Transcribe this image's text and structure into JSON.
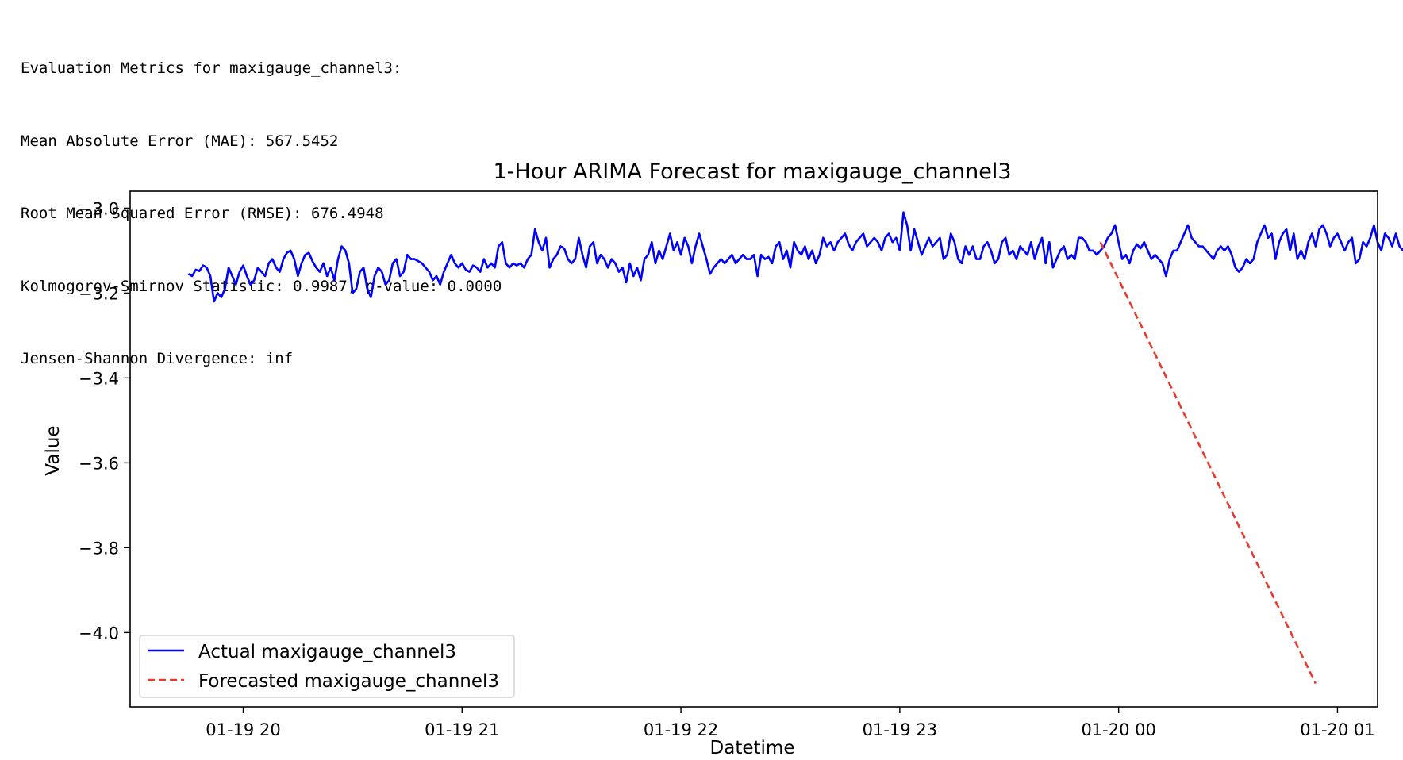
{
  "output_text": {
    "lines": [
      "Evaluation Metrics for maxigauge_channel3:",
      "Mean Absolute Error (MAE): 567.5452",
      "Root Mean Squared Error (RMSE): 676.4948",
      "Kolmogorov-Smirnov Statistic: 0.9987, p-value: 0.0000",
      "Jensen-Shannon Divergence: inf"
    ]
  },
  "chart_data": {
    "type": "line",
    "title": "1-Hour ARIMA Forecast for maxigauge_channel3",
    "xlabel": "Datetime",
    "ylabel": "Value",
    "xlim": [
      "01-19 19:29",
      "01-20 01:11"
    ],
    "ylim": [
      -4.175,
      -2.96
    ],
    "xticks": [
      "01-19 20",
      "01-19 21",
      "01-19 22",
      "01-19 23",
      "01-20 00",
      "01-20 01"
    ],
    "yticks": [
      -3.0,
      -3.2,
      -3.4,
      -3.6,
      -3.8,
      -4.0
    ],
    "ytick_labels": [
      "−3.0",
      "−3.2",
      "−3.4",
      "−3.6",
      "−3.8",
      "−4.0"
    ],
    "grid": false,
    "legend_position": "lower-left",
    "x_start": "01-19 19:45",
    "x_step_minutes": 1,
    "series": [
      {
        "name": "Actual maxigauge_channel3",
        "color": "#0000ff",
        "style": "solid",
        "values": [
          -3.155,
          -3.16,
          -3.145,
          -3.148,
          -3.135,
          -3.14,
          -3.16,
          -3.22,
          -3.2,
          -3.21,
          -3.19,
          -3.14,
          -3.16,
          -3.18,
          -3.15,
          -3.135,
          -3.16,
          -3.18,
          -3.17,
          -3.14,
          -3.15,
          -3.16,
          -3.13,
          -3.12,
          -3.14,
          -3.15,
          -3.12,
          -3.105,
          -3.1,
          -3.12,
          -3.16,
          -3.13,
          -3.11,
          -3.105,
          -3.125,
          -3.14,
          -3.15,
          -3.13,
          -3.16,
          -3.14,
          -3.17,
          -3.12,
          -3.09,
          -3.1,
          -3.13,
          -3.2,
          -3.19,
          -3.15,
          -3.14,
          -3.19,
          -3.21,
          -3.16,
          -3.14,
          -3.15,
          -3.18,
          -3.17,
          -3.13,
          -3.12,
          -3.16,
          -3.15,
          -3.11,
          -3.12,
          -3.12,
          -3.125,
          -3.13,
          -3.14,
          -3.15,
          -3.17,
          -3.16,
          -3.18,
          -3.15,
          -3.13,
          -3.11,
          -3.13,
          -3.14,
          -3.13,
          -3.145,
          -3.15,
          -3.135,
          -3.14,
          -3.15,
          -3.12,
          -3.14,
          -3.13,
          -3.14,
          -3.09,
          -3.08,
          -3.13,
          -3.14,
          -3.13,
          -3.135,
          -3.13,
          -3.14,
          -3.12,
          -3.11,
          -3.05,
          -3.08,
          -3.1,
          -3.07,
          -3.14,
          -3.12,
          -3.11,
          -3.09,
          -3.095,
          -3.12,
          -3.13,
          -3.12,
          -3.07,
          -3.11,
          -3.14,
          -3.09,
          -3.08,
          -3.13,
          -3.11,
          -3.12,
          -3.14,
          -3.12,
          -3.13,
          -3.15,
          -3.14,
          -3.175,
          -3.13,
          -3.16,
          -3.14,
          -3.17,
          -3.12,
          -3.11,
          -3.08,
          -3.13,
          -3.1,
          -3.12,
          -3.09,
          -3.06,
          -3.1,
          -3.08,
          -3.11,
          -3.07,
          -3.09,
          -3.13,
          -3.09,
          -3.06,
          -3.09,
          -3.12,
          -3.155,
          -3.14,
          -3.13,
          -3.12,
          -3.13,
          -3.12,
          -3.11,
          -3.13,
          -3.12,
          -3.11,
          -3.12,
          -3.12,
          -3.11,
          -3.16,
          -3.11,
          -3.12,
          -3.115,
          -3.13,
          -3.09,
          -3.08,
          -3.12,
          -3.1,
          -3.14,
          -3.08,
          -3.1,
          -3.11,
          -3.09,
          -3.12,
          -3.1,
          -3.13,
          -3.11,
          -3.07,
          -3.09,
          -3.08,
          -3.1,
          -3.08,
          -3.07,
          -3.06,
          -3.085,
          -3.1,
          -3.08,
          -3.07,
          -3.06,
          -3.09,
          -3.08,
          -3.07,
          -3.08,
          -3.1,
          -3.07,
          -3.06,
          -3.08,
          -3.07,
          -3.1,
          -3.01,
          -3.04,
          -3.1,
          -3.05,
          -3.08,
          -3.11,
          -3.09,
          -3.07,
          -3.09,
          -3.08,
          -3.07,
          -3.12,
          -3.11,
          -3.06,
          -3.08,
          -3.12,
          -3.13,
          -3.09,
          -3.11,
          -3.09,
          -3.12,
          -3.12,
          -3.09,
          -3.08,
          -3.1,
          -3.13,
          -3.12,
          -3.08,
          -3.07,
          -3.11,
          -3.1,
          -3.12,
          -3.09,
          -3.1,
          -3.11,
          -3.08,
          -3.12,
          -3.09,
          -3.07,
          -3.13,
          -3.08,
          -3.14,
          -3.12,
          -3.1,
          -3.09,
          -3.12,
          -3.11,
          -3.12,
          -3.07,
          -3.07,
          -3.08,
          -3.1,
          -3.1,
          -3.11,
          -3.1,
          -3.09,
          -3.07,
          -3.06,
          -3.04,
          -3.08,
          -3.12,
          -3.11,
          -3.13,
          -3.1,
          -3.085,
          -3.095,
          -3.08,
          -3.1,
          -3.12,
          -3.11,
          -3.12,
          -3.13,
          -3.16,
          -3.12,
          -3.1,
          -3.1,
          -3.08,
          -3.06,
          -3.04,
          -3.07,
          -3.08,
          -3.09,
          -3.09,
          -3.1,
          -3.11,
          -3.12,
          -3.1,
          -3.09,
          -3.1,
          -3.09,
          -3.11,
          -3.14,
          -3.15,
          -3.14,
          -3.12,
          -3.13,
          -3.12,
          -3.08,
          -3.06,
          -3.04,
          -3.07,
          -3.06,
          -3.12,
          -3.08,
          -3.06,
          -3.05,
          -3.1,
          -3.06,
          -3.12,
          -3.1,
          -3.12,
          -3.08,
          -3.06,
          -3.09,
          -3.05,
          -3.04,
          -3.06,
          -3.09,
          -3.07,
          -3.06,
          -3.08,
          -3.1,
          -3.08,
          -3.07,
          -3.13,
          -3.12,
          -3.08,
          -3.09,
          -3.07,
          -3.04,
          -3.08,
          -3.1,
          -3.06,
          -3.07,
          -3.09,
          -3.06,
          -3.09,
          -3.1,
          -3.07,
          -3.06,
          -3.07,
          -3.1,
          -3.08,
          -3.07,
          -3.05,
          -3.04,
          -3.05,
          -3.07,
          -3.1,
          -3.09,
          -3.1,
          -3.06,
          -3.02,
          -3.05,
          -3.07,
          -3.04,
          -3.06,
          -3.07,
          -3.09
        ]
      },
      {
        "name": "Forecasted maxigauge_channel3",
        "color": "#e63b2e",
        "style": "dashed",
        "points": [
          [
            "01-19 23:55",
            -3.08
          ],
          [
            "01-20 00:54",
            -4.12
          ]
        ]
      }
    ]
  }
}
